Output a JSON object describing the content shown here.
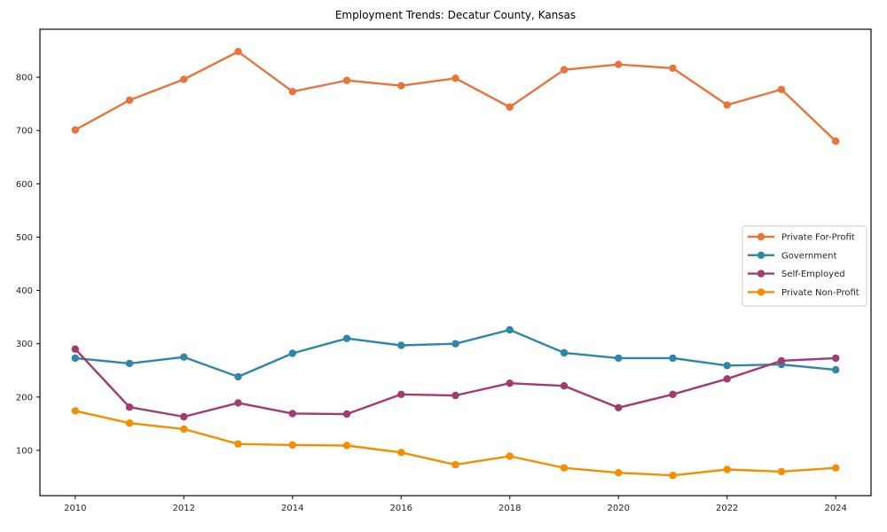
{
  "figure": {
    "background": "#ffffff",
    "axis_color": "#1a1a1a",
    "text_color": "#262626",
    "legend_border_color": "#cccccc"
  },
  "chart_data": {
    "type": "line",
    "title": "Employment Trends: Decatur County, Kansas",
    "xlabel": "",
    "ylabel": "",
    "x": [
      2010,
      2011,
      2012,
      2013,
      2014,
      2015,
      2016,
      2017,
      2018,
      2019,
      2020,
      2021,
      2022,
      2023,
      2024
    ],
    "xticks": [
      2010,
      2012,
      2014,
      2016,
      2018,
      2020,
      2022,
      2024
    ],
    "yticks": [
      100,
      200,
      300,
      400,
      500,
      600,
      700,
      800
    ],
    "xlim": [
      2009.35,
      2024.65
    ],
    "ylim": [
      15,
      890
    ],
    "grid": false,
    "legend_position": "center right",
    "series": [
      {
        "name": "Private For-Profit",
        "color": "#E8743B",
        "values": [
          701,
          757,
          796,
          848,
          773,
          794,
          784,
          798,
          744,
          814,
          824,
          817,
          748,
          777,
          680
        ]
      },
      {
        "name": "Government",
        "color": "#2E86AB",
        "values": [
          273,
          263,
          275,
          238,
          282,
          310,
          297,
          300,
          326,
          283,
          273,
          273,
          259,
          261,
          251
        ]
      },
      {
        "name": "Self-Employed",
        "color": "#A23B72",
        "values": [
          290,
          181,
          163,
          189,
          169,
          168,
          205,
          203,
          226,
          221,
          180,
          205,
          234,
          268,
          273
        ]
      },
      {
        "name": "Private Non-Profit",
        "color": "#F18F01",
        "values": [
          174,
          151,
          140,
          112,
          110,
          109,
          96,
          73,
          89,
          67,
          58,
          53,
          64,
          60,
          67
        ]
      }
    ]
  }
}
